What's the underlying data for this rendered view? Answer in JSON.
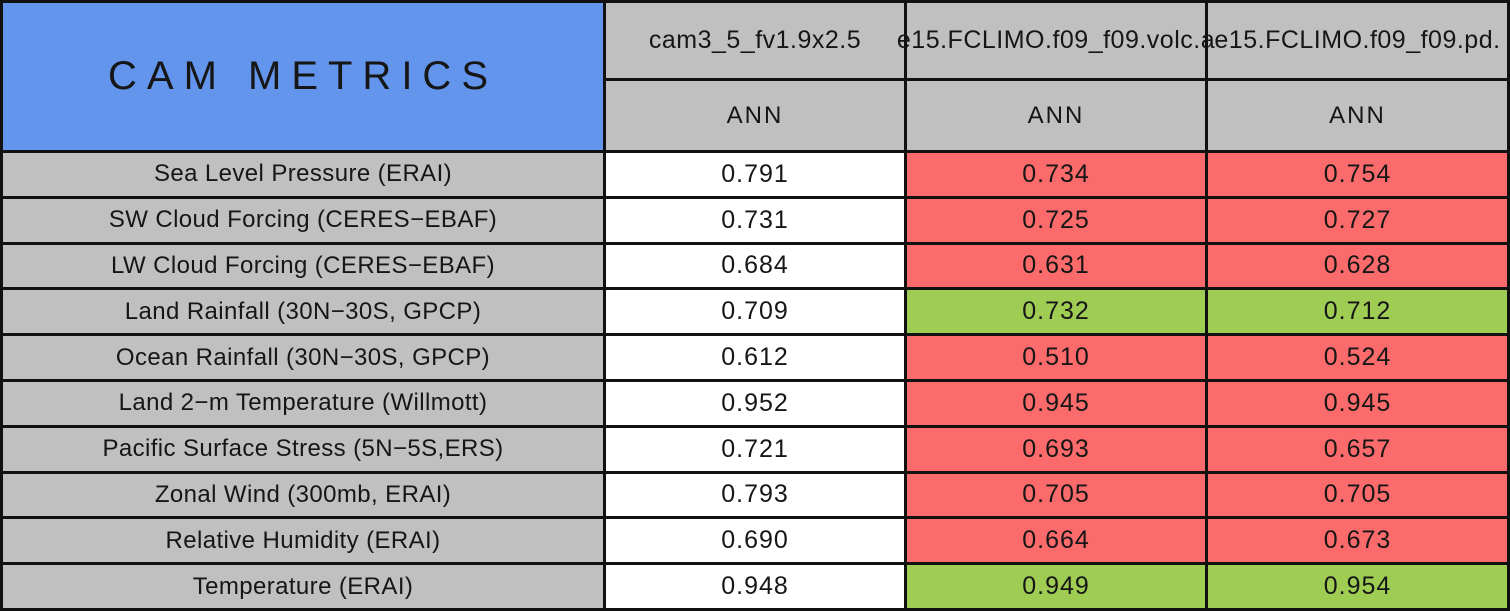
{
  "chart_data": {
    "type": "table",
    "title": "CAM METRICS",
    "columns": [
      {
        "model": "cam3_5_fv1.9x2.5",
        "season": "ANN"
      },
      {
        "model": "e15.FCLIMO.f09_f09.volc.a",
        "season": "ANN"
      },
      {
        "model": "e15.FCLIMO.f09_f09.pd.",
        "season": "ANN"
      }
    ],
    "rows": [
      {
        "metric": "Sea Level Pressure (ERAI)",
        "values": [
          "0.791",
          "0.734",
          "0.754"
        ],
        "colors": [
          "white",
          "red",
          "red"
        ]
      },
      {
        "metric": "SW Cloud Forcing (CERES−EBAF)",
        "values": [
          "0.731",
          "0.725",
          "0.727"
        ],
        "colors": [
          "white",
          "red",
          "red"
        ]
      },
      {
        "metric": "LW Cloud Forcing (CERES−EBAF)",
        "values": [
          "0.684",
          "0.631",
          "0.628"
        ],
        "colors": [
          "white",
          "red",
          "red"
        ]
      },
      {
        "metric": "Land Rainfall (30N−30S, GPCP)",
        "values": [
          "0.709",
          "0.732",
          "0.712"
        ],
        "colors": [
          "white",
          "green",
          "green"
        ]
      },
      {
        "metric": "Ocean Rainfall (30N−30S, GPCP)",
        "values": [
          "0.612",
          "0.510",
          "0.524"
        ],
        "colors": [
          "white",
          "red",
          "red"
        ]
      },
      {
        "metric": "Land 2−m Temperature (Willmott)",
        "values": [
          "0.952",
          "0.945",
          "0.945"
        ],
        "colors": [
          "white",
          "red",
          "red"
        ]
      },
      {
        "metric": "Pacific Surface Stress (5N−5S,ERS)",
        "values": [
          "0.721",
          "0.693",
          "0.657"
        ],
        "colors": [
          "white",
          "red",
          "red"
        ]
      },
      {
        "metric": "Zonal Wind (300mb, ERAI)",
        "values": [
          "0.793",
          "0.705",
          "0.705"
        ],
        "colors": [
          "white",
          "red",
          "red"
        ]
      },
      {
        "metric": "Relative Humidity (ERAI)",
        "values": [
          "0.690",
          "0.664",
          "0.673"
        ],
        "colors": [
          "white",
          "red",
          "red"
        ]
      },
      {
        "metric": "Temperature (ERAI)",
        "values": [
          "0.948",
          "0.949",
          "0.954"
        ],
        "colors": [
          "white",
          "green",
          "green"
        ]
      }
    ],
    "colors": {
      "title_bg": "#6495ED",
      "header_bg": "#C0C0C0",
      "baseline_bg": "#FFFFFF",
      "worse_bg": "#FB6B6B",
      "better_bg": "#9FCD54",
      "border": "#111111"
    }
  }
}
